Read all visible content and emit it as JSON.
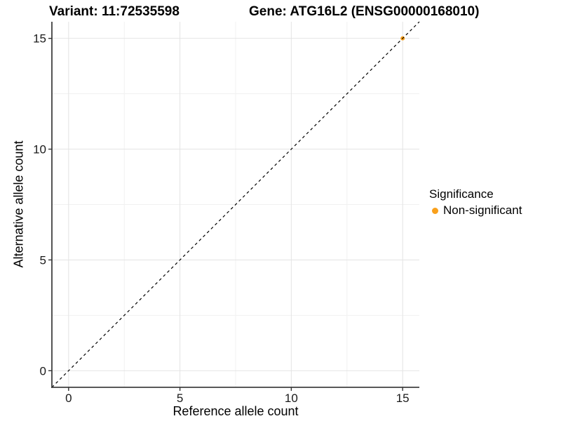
{
  "titles": {
    "variant": "Variant: 11:72535598",
    "gene": "Gene: ATG16L2 (ENSG00000168010)"
  },
  "axes": {
    "x_label": "Reference allele count",
    "y_label": "Alternative allele count"
  },
  "legend": {
    "title": "Significance",
    "items": [
      {
        "label": "Non-significant",
        "color": "#F9A01B"
      }
    ]
  },
  "chart_data": {
    "type": "scatter",
    "title": "Variant: 11:72535598  |  Gene: ATG16L2 (ENSG00000168010)",
    "xlabel": "Reference allele count",
    "ylabel": "Alternative allele count",
    "xlim": [
      -0.75,
      15.75
    ],
    "ylim": [
      -0.75,
      15.75
    ],
    "x_ticks": [
      0,
      5,
      10,
      15
    ],
    "y_ticks": [
      0,
      5,
      10,
      15
    ],
    "minor_ticks": [
      2.5,
      7.5,
      12.5
    ],
    "grid": true,
    "legend_position": "right",
    "series": [
      {
        "name": "Non-significant",
        "color": "#F9A01B",
        "points": [
          [
            15,
            15
          ]
        ]
      }
    ],
    "reference_line": {
      "type": "abline",
      "slope": 1,
      "intercept": 0,
      "style": "dashed",
      "color": "#000000"
    },
    "colors": {
      "grid_major": "#E4E4E4",
      "grid_minor": "#F1F1F1",
      "axis_line": "#404040",
      "tick_mark": "#333333",
      "tick_text": "#1A1A1A"
    }
  }
}
